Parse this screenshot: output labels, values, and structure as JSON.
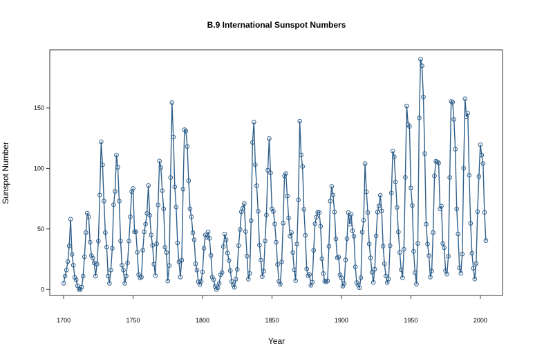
{
  "chart_data": {
    "type": "line",
    "title": "B.9  International Sunspot Numbers",
    "xlabel": "Year",
    "ylabel": "Sunspot Number",
    "xlim": [
      1690,
      2016
    ],
    "ylim": [
      -5,
      198
    ],
    "x_ticks": [
      "1700",
      "1750",
      "1800",
      "1850",
      "1900",
      "1950",
      "2000"
    ],
    "y_ticks": [
      "0",
      "50",
      "100",
      "150"
    ],
    "grid": false,
    "legend": "none",
    "line_color": "#2f5f8a",
    "markers": "open-circle",
    "series": [
      {
        "x_start": 1700,
        "x_step": 1,
        "values": [
          5,
          11,
          16,
          23,
          36,
          58,
          29,
          20,
          10,
          8,
          3,
          0,
          0,
          2,
          11,
          27,
          47,
          63,
          60,
          39,
          28,
          26,
          22,
          11,
          21,
          40,
          78,
          122,
          103,
          73,
          47,
          35,
          11,
          5,
          16,
          34,
          70,
          81,
          111,
          101,
          73,
          40,
          20,
          16,
          5,
          11,
          22,
          40,
          60,
          80.9,
          83.4,
          47.7,
          47.8,
          30.7,
          12.2,
          9.6,
          10.2,
          32.4,
          47.6,
          54,
          62.9,
          85.9,
          61.2,
          45.1,
          36.4,
          20.9,
          11.4,
          37.8,
          69.8,
          106.1,
          100.8,
          81.6,
          66.5,
          34.8,
          30.6,
          7,
          19.8,
          92.5,
          154.4,
          125.9,
          84.8,
          68.1,
          38.5,
          22.8,
          10.2,
          24.1,
          82.9,
          132,
          130.9,
          118.1,
          89.9,
          66.6,
          60,
          46.9,
          41,
          21.3,
          16,
          6.4,
          4.1,
          6.8,
          14.5,
          34,
          45,
          43.1,
          47.5,
          42.2,
          28.1,
          10.1,
          8.1,
          2.5,
          0,
          1.4,
          5,
          12.2,
          13.9,
          35.4,
          45.8,
          41.1,
          30.1,
          23.9,
          15.6,
          6.6,
          4,
          1.8,
          8.5,
          16.6,
          36.3,
          49.6,
          64.2,
          67,
          70.9,
          47.8,
          27.5,
          8.5,
          13.2,
          56.9,
          121.5,
          138.3,
          103.2,
          85.7,
          64.6,
          36.7,
          24.2,
          10.7,
          15,
          40.1,
          61.5,
          98.5,
          124.7,
          96.3,
          66.6,
          64.5,
          54.1,
          39,
          20.6,
          6.7,
          4.3,
          22.7,
          54.8,
          93.8,
          95.8,
          77.2,
          59.1,
          44,
          47,
          30.5,
          16.3,
          7.3,
          37.6,
          74,
          139,
          111.2,
          101.6,
          66.2,
          44.7,
          17,
          11.3,
          12.4,
          3.4,
          6,
          32.3,
          54.3,
          59.7,
          63.7,
          63.5,
          52.2,
          25.4,
          13.1,
          6.8,
          6.3,
          7.1,
          35.6,
          73,
          85.1,
          78,
          64,
          41.8,
          26.2,
          26.7,
          12.1,
          9.5,
          2.7,
          5,
          24.4,
          42,
          63.5,
          53.8,
          62,
          48.5,
          43.9,
          18.6,
          5.7,
          3.6,
          1.4,
          9.6,
          47.4,
          57.1,
          103.9,
          80.6,
          63.6,
          37.6,
          26.1,
          14.2,
          5.8,
          16.7,
          44.3,
          63.9,
          69,
          77.8,
          64.9,
          35.7,
          21.2,
          11.1,
          5.7,
          8.7,
          36.1,
          79.7,
          114.4,
          109.6,
          88.8,
          67.8,
          47.5,
          30.6,
          16.3,
          9.6,
          33.2,
          92.6,
          151.6,
          136.3,
          134.7,
          83.9,
          69.4,
          31.5,
          13.9,
          4.4,
          38,
          141.7,
          190.2,
          184.8,
          159,
          112.3,
          53.9,
          37.5,
          27.9,
          10.2,
          15.1,
          47,
          93.8,
          105.9,
          105.5,
          104.5,
          66.6,
          68.9,
          38,
          34.5,
          15.5,
          12.6,
          27.5,
          92.5,
          155.4,
          154.7,
          140.5,
          115.9,
          66.6,
          45.9,
          17.9,
          13.4,
          29.2,
          100.2,
          157.6,
          142.6,
          145.7,
          94.3,
          54.6,
          29.9,
          17.5,
          8.6,
          21.5,
          64.3,
          93.3,
          119.6,
          111,
          104,
          63.7,
          40.4
        ]
      }
    ]
  }
}
